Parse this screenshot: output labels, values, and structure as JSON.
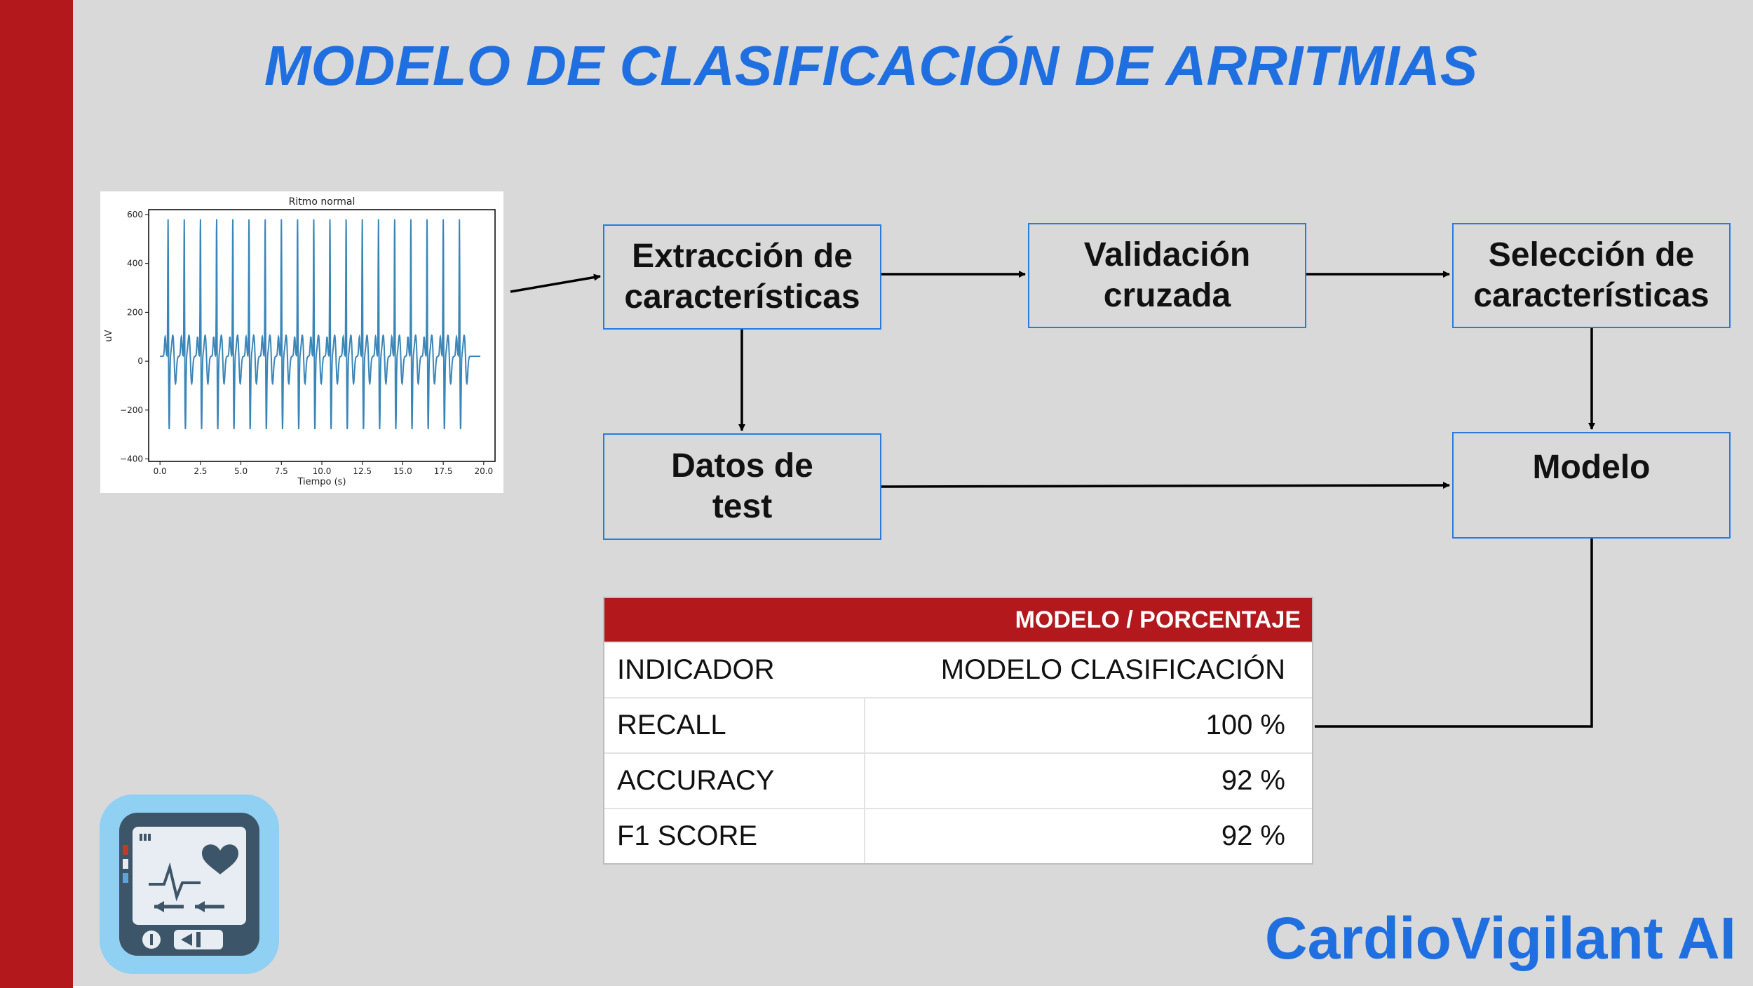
{
  "title": "MODELO DE CLASIFICACIÓN DE ARRITMIAS",
  "brand": "CardioVigilant AI",
  "colors": {
    "accent_red": "#b3191c",
    "title_blue": "#1f6fe0",
    "box_border": "#2a7be0",
    "background": "#d9d9d9"
  },
  "flow": {
    "extraccion": "Extracción de\ncaracterísticas",
    "validacion": "Validación\ncruzada",
    "seleccion": "Selección de\ncaracterísticas",
    "datos_test": "Datos de\ntest",
    "modelo": "Modelo"
  },
  "chart_data": {
    "type": "line",
    "title": "Ritmo normal",
    "xlabel": "Tiempo (s)",
    "ylabel": "uV",
    "xlim": [
      -0.7,
      20.7
    ],
    "ylim": [
      -410,
      620
    ],
    "xticks": [
      "0.0",
      "2.5",
      "5.0",
      "7.5",
      "10.0",
      "12.5",
      "15.0",
      "17.5",
      "20.0"
    ],
    "yticks": [
      "600",
      "400",
      "200",
      "0",
      "−200",
      "−400"
    ],
    "beat_times": [
      0.5,
      1.5,
      2.5,
      3.5,
      4.5,
      5.5,
      6.5,
      7.5,
      8.5,
      9.5,
      10.5,
      11.5,
      12.5,
      13.5,
      14.5,
      15.5,
      16.5,
      17.5,
      18.5
    ],
    "r_peak_uV": 580,
    "s_trough_uV": -300,
    "duration_s": 19.8,
    "color": "#3a86b8"
  },
  "table": {
    "header": "MODELO / PORCENTAJE",
    "columns": [
      "INDICADOR",
      "MODELO CLASIFICACIÓN"
    ],
    "rows": [
      {
        "label": "RECALL",
        "value": "100 %"
      },
      {
        "label": "ACCURACY",
        "value": "92 %"
      },
      {
        "label": "F1 SCORE",
        "value": "92 %"
      }
    ]
  },
  "icon": {
    "name": "heart-monitor-icon"
  }
}
